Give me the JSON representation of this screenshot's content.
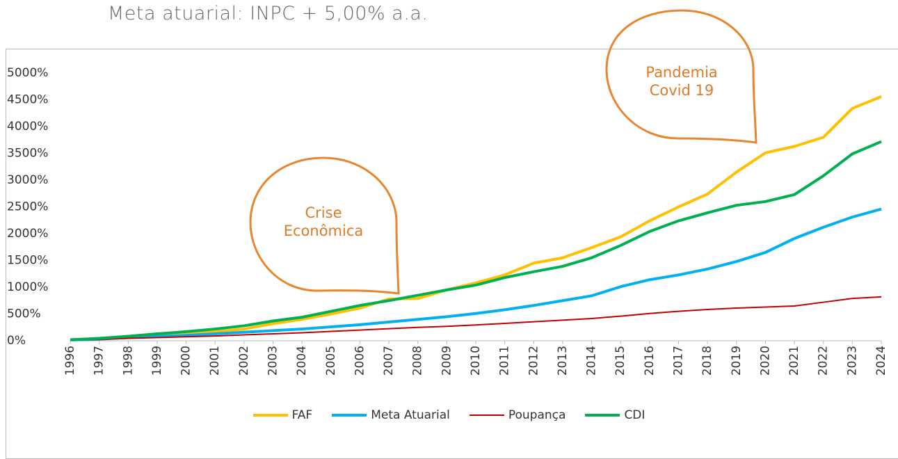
{
  "chart_data": {
    "type": "line",
    "title": "Meta atuarial: INPC + 5,00% a.a.",
    "categories": [
      "1996",
      "1997",
      "1998",
      "1999",
      "2000",
      "2001",
      "2002",
      "2003",
      "2004",
      "2005",
      "2006",
      "2007",
      "2008",
      "2009",
      "2010",
      "2011",
      "2012",
      "2013",
      "2014",
      "2015",
      "2016",
      "2017",
      "2018",
      "2019",
      "2020",
      "2021",
      "2022",
      "2023",
      "2024"
    ],
    "series": [
      {
        "name": "FAF",
        "color": "#ffc000",
        "values": [
          20,
          40,
          70,
          100,
          130,
          170,
          220,
          320,
          400,
          500,
          610,
          780,
          790,
          950,
          1080,
          1230,
          1450,
          1550,
          1740,
          1940,
          2240,
          2500,
          2740,
          3150,
          3510,
          3630,
          3800,
          4340,
          4560
        ]
      },
      {
        "name": "Meta Atuarial",
        "color": "#00b0f0",
        "values": [
          15,
          30,
          60,
          80,
          100,
          130,
          160,
          190,
          220,
          260,
          300,
          350,
          400,
          450,
          510,
          580,
          660,
          750,
          840,
          1010,
          1140,
          1230,
          1340,
          1480,
          1650,
          1910,
          2120,
          2310,
          2460
        ]
      },
      {
        "name": "Poupança",
        "color": "#c00000",
        "values": [
          10,
          25,
          45,
          60,
          75,
          90,
          110,
          130,
          150,
          175,
          200,
          225,
          250,
          270,
          295,
          325,
          355,
          385,
          415,
          460,
          510,
          550,
          585,
          610,
          630,
          650,
          720,
          790,
          820
        ]
      },
      {
        "name": "CDI",
        "color": "#00b050",
        "values": [
          20,
          45,
          85,
          130,
          170,
          220,
          280,
          370,
          440,
          550,
          660,
          750,
          850,
          950,
          1040,
          1180,
          1290,
          1390,
          1550,
          1780,
          2040,
          2240,
          2390,
          2530,
          2600,
          2730,
          3080,
          3490,
          3720
        ]
      }
    ],
    "ylim": [
      0,
      5000
    ],
    "yticks": [
      {
        "value": 0,
        "label": "0%"
      },
      {
        "value": 500,
        "label": "500%"
      },
      {
        "value": 1000,
        "label": "1000%"
      },
      {
        "value": 1500,
        "label": "1500%"
      },
      {
        "value": 2000,
        "label": "2000%"
      },
      {
        "value": 2500,
        "label": "2500%"
      },
      {
        "value": 3000,
        "label": "3000%"
      },
      {
        "value": 3500,
        "label": "3500%"
      },
      {
        "value": 4000,
        "label": "4000%"
      },
      {
        "value": 4500,
        "label": "4500%"
      },
      {
        "value": 5000,
        "label": "5000%"
      }
    ],
    "grid": false,
    "legend": "bottom",
    "annotations": [
      {
        "text": "Crise Econômica"
      },
      {
        "text": "Pandemia Covid 19"
      }
    ]
  }
}
